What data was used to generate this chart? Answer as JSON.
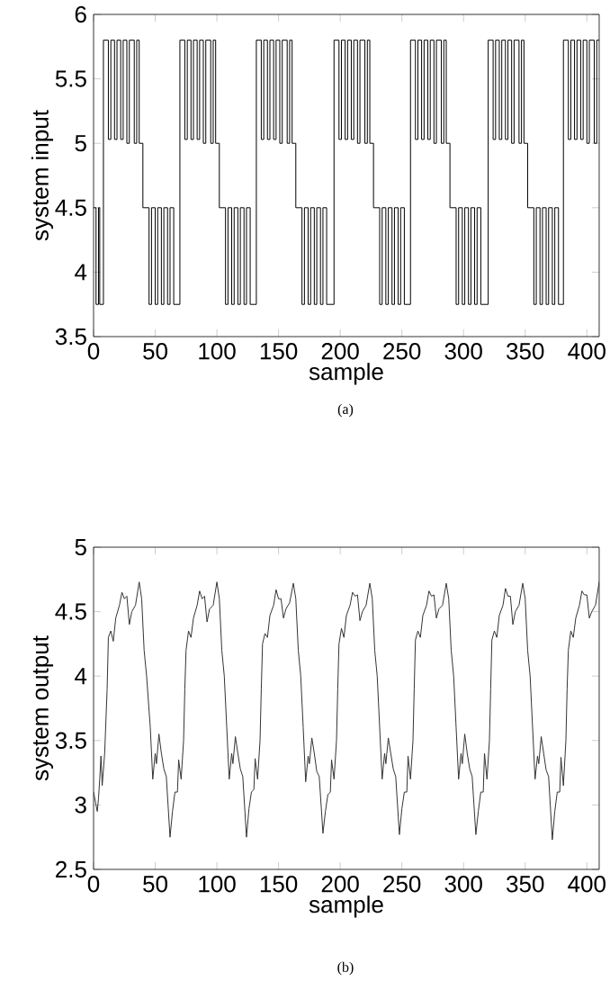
{
  "chart_data": [
    {
      "type": "step",
      "xlabel": "sample",
      "ylabel": "system input",
      "annotations": [
        "(a)"
      ],
      "xlim": [
        0,
        410
      ],
      "ylim": [
        3.5,
        6
      ],
      "xticks": [
        0,
        50,
        100,
        150,
        200,
        250,
        300,
        350,
        400
      ],
      "yticks": [
        3.5,
        4,
        4.5,
        5,
        5.5,
        6
      ],
      "grid": false,
      "color": "#000000",
      "x": [
        0,
        2,
        4,
        5,
        8,
        12,
        14,
        17,
        19,
        22,
        24,
        27,
        29,
        33,
        35,
        37,
        40,
        45,
        47,
        50,
        52,
        55,
        57,
        60,
        62,
        65,
        70,
        74,
        76,
        79,
        81,
        84,
        86,
        89,
        91,
        95,
        97,
        99,
        102,
        107,
        109,
        112,
        114,
        117,
        119,
        122,
        124,
        127,
        132,
        136,
        138,
        141,
        143,
        146,
        148,
        151,
        153,
        157,
        159,
        161,
        164,
        169,
        171,
        174,
        176,
        179,
        181,
        184,
        186,
        189,
        195,
        199,
        201,
        204,
        206,
        209,
        211,
        214,
        216,
        220,
        222,
        224,
        227,
        232,
        234,
        237,
        239,
        242,
        244,
        247,
        249,
        252,
        257,
        261,
        263,
        266,
        268,
        271,
        273,
        276,
        278,
        282,
        284,
        286,
        289,
        294,
        296,
        299,
        301,
        304,
        306,
        309,
        311,
        314,
        320,
        324,
        326,
        329,
        331,
        334,
        336,
        339,
        341,
        345,
        347,
        349,
        352,
        357,
        359,
        362,
        364,
        367,
        369,
        372,
        374,
        377,
        381,
        385,
        387,
        390,
        392,
        395,
        397,
        400,
        402,
        406,
        408,
        410
      ],
      "values": [
        4.5,
        3.75,
        4.5,
        3.75,
        5.8,
        5.03,
        5.8,
        5.03,
        5.8,
        5.03,
        5.8,
        5.0,
        5.8,
        5.0,
        5.8,
        5.0,
        4.5,
        3.75,
        4.5,
        3.75,
        4.5,
        3.75,
        4.5,
        3.75,
        4.5,
        3.75,
        5.8,
        5.03,
        5.8,
        5.03,
        5.8,
        5.03,
        5.8,
        5.0,
        5.8,
        5.0,
        5.8,
        5.0,
        4.5,
        3.75,
        4.5,
        3.75,
        4.5,
        3.75,
        4.5,
        3.75,
        4.5,
        3.75,
        5.8,
        5.03,
        5.8,
        5.03,
        5.8,
        5.03,
        5.8,
        5.0,
        5.8,
        5.0,
        5.8,
        5.0,
        4.5,
        3.75,
        4.5,
        3.75,
        4.5,
        3.75,
        4.5,
        3.75,
        4.5,
        3.75,
        5.8,
        5.03,
        5.8,
        5.03,
        5.8,
        5.03,
        5.8,
        5.0,
        5.8,
        5.0,
        5.8,
        5.0,
        4.5,
        3.75,
        4.5,
        3.75,
        4.5,
        3.75,
        4.5,
        3.75,
        4.5,
        3.75,
        5.8,
        5.03,
        5.8,
        5.03,
        5.8,
        5.03,
        5.8,
        5.0,
        5.8,
        5.0,
        5.8,
        5.0,
        4.5,
        3.75,
        4.5,
        3.75,
        4.5,
        3.75,
        4.5,
        3.75,
        4.5,
        3.75,
        5.8,
        5.03,
        5.8,
        5.03,
        5.8,
        5.03,
        5.8,
        5.0,
        5.8,
        5.0,
        5.8,
        5.0,
        4.5,
        3.75,
        4.5,
        3.75,
        4.5,
        3.75,
        4.5,
        3.75,
        4.5,
        3.75,
        5.8,
        5.03,
        5.8,
        5.03,
        5.8,
        5.03,
        5.8,
        5.0,
        5.8,
        5.0,
        5.8,
        5.8
      ]
    },
    {
      "type": "line",
      "xlabel": "sample",
      "ylabel": "system output",
      "annotations": [
        "(b)"
      ],
      "xlim": [
        0,
        410
      ],
      "ylim": [
        2.5,
        5
      ],
      "xticks": [
        0,
        50,
        100,
        150,
        200,
        250,
        300,
        350,
        400
      ],
      "yticks": [
        2.5,
        3,
        3.5,
        4,
        4.5,
        5
      ],
      "grid": false,
      "color": "#333333",
      "x": [
        0,
        3,
        4,
        5,
        6,
        7,
        9,
        11,
        12,
        14,
        16,
        18,
        21,
        23,
        25,
        27,
        29,
        31,
        34,
        37,
        39,
        41,
        43,
        46,
        48,
        50,
        51,
        53,
        55,
        57,
        59,
        62,
        64,
        66,
        68,
        69,
        71,
        73,
        74,
        75,
        77,
        79,
        81,
        84,
        86,
        88,
        90,
        92,
        94,
        97,
        100,
        102,
        104,
        106,
        108,
        110,
        112,
        113,
        115,
        117,
        119,
        121,
        124,
        126,
        128,
        130,
        131,
        133,
        135,
        136,
        137,
        139,
        141,
        143,
        146,
        148,
        150,
        152,
        154,
        156,
        159,
        162,
        164,
        166,
        168,
        170,
        172,
        174,
        175,
        177,
        179,
        181,
        183,
        186,
        188,
        190,
        192,
        193,
        195,
        197,
        198,
        199,
        201,
        203,
        205,
        208,
        210,
        212,
        214,
        216,
        218,
        221,
        224,
        226,
        228,
        230,
        232,
        234,
        236,
        237,
        239,
        241,
        243,
        245,
        248,
        250,
        252,
        254,
        255,
        257,
        259,
        260,
        261,
        263,
        265,
        267,
        270,
        272,
        274,
        276,
        278,
        280,
        283,
        286,
        288,
        290,
        292,
        294,
        296,
        298,
        299,
        301,
        303,
        305,
        307,
        310,
        312,
        314,
        316,
        317,
        319,
        321,
        322,
        323,
        325,
        327,
        329,
        332,
        334,
        336,
        338,
        340,
        342,
        345,
        348,
        350,
        352,
        354,
        356,
        358,
        360,
        361,
        363,
        365,
        367,
        369,
        372,
        374,
        376,
        378,
        379,
        381,
        383,
        384,
        385,
        387,
        389,
        391,
        394,
        396,
        398,
        400,
        402,
        404,
        407,
        410
      ],
      "values": [
        3.1,
        2.95,
        3.05,
        3.2,
        3.38,
        3.15,
        3.4,
        3.9,
        4.3,
        4.35,
        4.27,
        4.45,
        4.55,
        4.65,
        4.6,
        4.62,
        4.4,
        4.5,
        4.55,
        4.73,
        4.6,
        4.2,
        4.0,
        3.6,
        3.2,
        3.4,
        3.32,
        3.55,
        3.4,
        3.28,
        3.22,
        2.75,
        2.95,
        3.1,
        3.1,
        3.35,
        3.2,
        3.5,
        3.9,
        4.2,
        4.35,
        4.3,
        4.45,
        4.55,
        4.66,
        4.6,
        4.62,
        4.42,
        4.52,
        4.55,
        4.73,
        4.6,
        4.2,
        4.0,
        3.6,
        3.2,
        3.4,
        3.32,
        3.53,
        3.4,
        3.28,
        3.22,
        2.75,
        2.97,
        3.1,
        3.12,
        3.36,
        3.2,
        3.5,
        3.9,
        4.25,
        4.33,
        4.3,
        4.47,
        4.55,
        4.67,
        4.6,
        4.6,
        4.45,
        4.52,
        4.57,
        4.72,
        4.6,
        4.2,
        4.0,
        3.6,
        3.18,
        3.38,
        3.32,
        3.52,
        3.4,
        3.26,
        3.22,
        2.78,
        2.95,
        3.08,
        3.1,
        3.35,
        3.2,
        3.5,
        3.9,
        4.25,
        4.37,
        4.3,
        4.47,
        4.55,
        4.65,
        4.62,
        4.63,
        4.43,
        4.5,
        4.55,
        4.72,
        4.6,
        4.2,
        4.0,
        3.6,
        3.2,
        3.4,
        3.32,
        3.52,
        3.4,
        3.28,
        3.22,
        2.77,
        2.97,
        3.1,
        3.1,
        3.38,
        3.2,
        3.5,
        3.9,
        4.28,
        4.35,
        4.3,
        4.47,
        4.55,
        4.66,
        4.62,
        4.63,
        4.45,
        4.52,
        4.55,
        4.72,
        4.6,
        4.2,
        4.0,
        3.6,
        3.2,
        3.4,
        3.32,
        3.55,
        3.4,
        3.28,
        3.22,
        2.77,
        2.95,
        3.1,
        3.1,
        3.4,
        3.2,
        3.5,
        3.9,
        4.28,
        4.35,
        4.3,
        4.47,
        4.55,
        4.68,
        4.62,
        4.62,
        4.4,
        4.5,
        4.55,
        4.72,
        4.6,
        4.2,
        4.0,
        3.6,
        3.2,
        3.38,
        3.32,
        3.53,
        3.4,
        3.27,
        3.22,
        2.73,
        2.95,
        3.1,
        3.1,
        3.37,
        3.15,
        3.5,
        3.9,
        4.2,
        4.35,
        4.3,
        4.45,
        4.55,
        4.66,
        4.63,
        4.63,
        4.45,
        4.5,
        4.55,
        4.73
      ]
    }
  ]
}
